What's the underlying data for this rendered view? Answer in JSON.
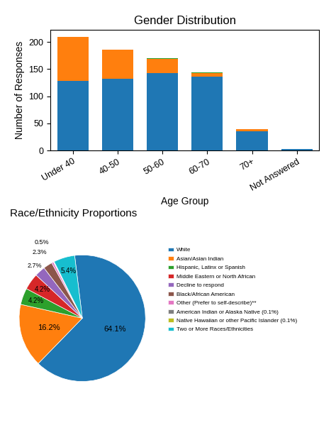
{
  "chart_data": [
    {
      "type": "bar",
      "title": "Gender Distribution",
      "x_label": "Age Group",
      "y_label": "Number of Responses",
      "categories": [
        "Under 40",
        "40-50",
        "50-60",
        "60-70",
        "70+",
        "Not Answered"
      ],
      "series": [
        {
          "values": [
            128,
            132,
            143,
            136,
            36,
            3
          ]
        },
        {
          "values": [
            82,
            54,
            26,
            7,
            3,
            0
          ]
        },
        {
          "values": [
            0,
            0,
            1,
            1,
            1,
            0
          ]
        }
      ],
      "stacked": true,
      "ylim": [
        0,
        222
      ],
      "yticks": [
        0,
        50,
        100,
        150,
        200
      ]
    },
    {
      "type": "pie",
      "title": "Race/Ethnicity Proportions",
      "categories": [
        "White",
        "Asian/Asian Indian",
        "Hispanic, Latinx or Spanish",
        "Middle Eastern or North African",
        "Decline to respond",
        "Black/African American",
        "Other (Prefer to self-describe)**",
        "American Indian or Alaska Native (0.1%)",
        "Native Hawaiian or other Pacific Islander (0.1%)",
        "Two or More Races/Ethnicities"
      ],
      "values": [
        64.1,
        16.2,
        4.2,
        4.2,
        2.7,
        2.3,
        0.5,
        0.1,
        0.1,
        5.4
      ],
      "value_labels": [
        "64.1%",
        "16.2%",
        "4.2%",
        "4.2%",
        "2.7%",
        "2.3%",
        "0.5%",
        null,
        null,
        "5.4%"
      ],
      "data_labels": true,
      "legend": "upper left"
    }
  ]
}
